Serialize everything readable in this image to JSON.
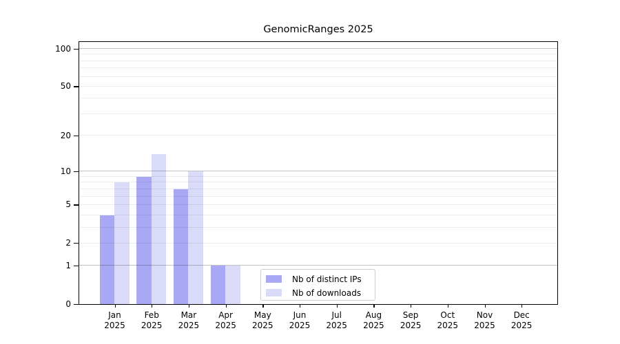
{
  "chart_data": {
    "type": "bar",
    "title": "GenomicRanges 2025",
    "xlabel": "",
    "ylabel": "",
    "categories": [
      "Jan",
      "Feb",
      "Mar",
      "Apr",
      "May",
      "Jun",
      "Jul",
      "Aug",
      "Sep",
      "Oct",
      "Nov",
      "Dec"
    ],
    "category_year": "2025",
    "series": [
      {
        "name": "Nb of distinct IPs",
        "color": "#a8a8f5",
        "values": [
          4,
          9,
          7,
          1,
          0,
          0,
          0,
          0,
          0,
          0,
          0,
          0
        ]
      },
      {
        "name": "Nb of downloads",
        "color": "#dadaf9",
        "values": [
          8,
          14,
          10,
          1,
          0,
          0,
          0,
          0,
          0,
          0,
          0,
          0
        ]
      }
    ],
    "y_axis": {
      "scale": "log1p",
      "tick_values": [
        0,
        1,
        2,
        5,
        10,
        20,
        50,
        100
      ],
      "top_value": 112
    },
    "grid": {
      "major_values": [
        1,
        10,
        100
      ],
      "minor_values": [
        2,
        3,
        4,
        5,
        6,
        7,
        8,
        9,
        20,
        30,
        40,
        50,
        60,
        70,
        80,
        90
      ]
    },
    "legend": {
      "location": "lower center",
      "entries": [
        "Nb of distinct IPs",
        "Nb of downloads"
      ]
    },
    "colors": {
      "spine": "#000000",
      "background": "#ffffff"
    }
  }
}
